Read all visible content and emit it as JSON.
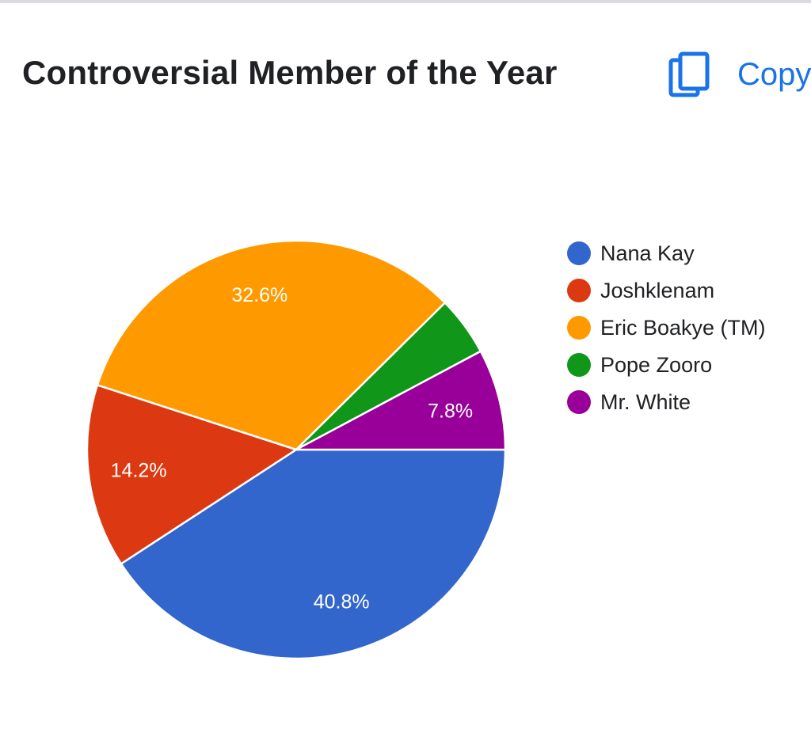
{
  "header": {
    "copy_label": "Copy",
    "copy_icon": "copy-icon"
  },
  "chart_data": {
    "type": "pie",
    "title": "Controversial Member of the Year",
    "legend_position": "right",
    "slices": [
      {
        "name": "Nana Kay",
        "value": 40.8,
        "label": "40.8%",
        "color": "#3366cc"
      },
      {
        "name": "Joshklenam",
        "value": 14.2,
        "label": "14.2%",
        "color": "#dc3912"
      },
      {
        "name": "Eric Boakye (TM)",
        "value": 32.6,
        "label": "32.6%",
        "color": "#ff9900"
      },
      {
        "name": "Pope Zooro",
        "value": 4.6,
        "label": "",
        "color": "#109618"
      },
      {
        "name": "Mr. White",
        "value": 7.8,
        "label": "7.8%",
        "color": "#990099"
      }
    ]
  }
}
